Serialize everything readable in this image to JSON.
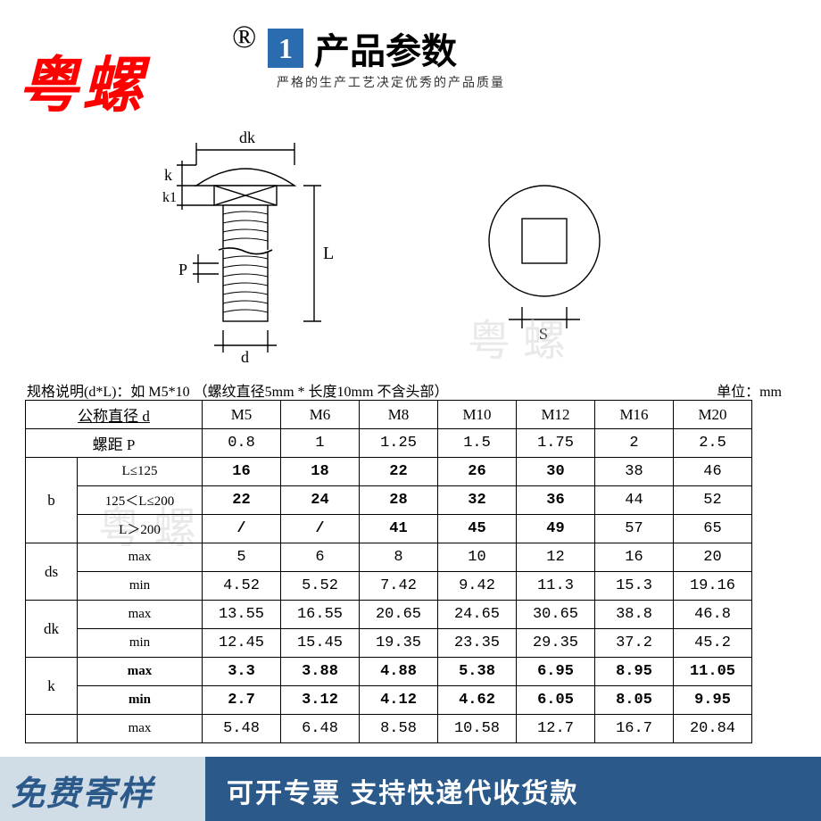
{
  "brand": "粤螺",
  "registered": "®",
  "title_num": "1",
  "title": "产品参数",
  "subtitle": "严格的生产工艺决定优秀的产品质量",
  "watermark": "粤螺",
  "diagram": {
    "labels": {
      "dk": "dk",
      "k": "k",
      "k1": "k1",
      "P": "P",
      "d": "d",
      "L": "L",
      "S": "S"
    },
    "line_color": "#000000",
    "fill_color": "#ffffff"
  },
  "spec_note": "规格说明(d*L)：如 M5*10 （螺纹直径5mm * 长度10mm 不含头部）",
  "unit_note": "单位：mm",
  "table": {
    "border_color": "#000000",
    "font_family": "Courier New",
    "columns": [
      "M5",
      "M6",
      "M8",
      "M10",
      "M12",
      "M16",
      "M20"
    ],
    "header_diameter": "公称直径   d",
    "header_pitch": "螺距    P",
    "pitch": [
      "0.8",
      "1",
      "1.25",
      "1.5",
      "1.75",
      "2",
      "2.5"
    ],
    "groups": [
      {
        "label": "b",
        "rows": [
          {
            "sub": "L≤125",
            "vals": [
              "16",
              "18",
              "22",
              "26",
              "30",
              "38",
              "46"
            ],
            "bold_to": 5
          },
          {
            "sub": "125＜L≤200",
            "vals": [
              "22",
              "24",
              "28",
              "32",
              "36",
              "44",
              "52"
            ],
            "bold_to": 5
          },
          {
            "sub": "L＞200",
            "vals": [
              "/",
              "/",
              "41",
              "45",
              "49",
              "57",
              "65"
            ],
            "bold_to": 5
          }
        ]
      },
      {
        "label": "ds",
        "rows": [
          {
            "sub": "max",
            "vals": [
              "5",
              "6",
              "8",
              "10",
              "12",
              "16",
              "20"
            ]
          },
          {
            "sub": "min",
            "vals": [
              "4.52",
              "5.52",
              "7.42",
              "9.42",
              "11.3",
              "15.3",
              "19.16"
            ]
          }
        ]
      },
      {
        "label": "dk",
        "rows": [
          {
            "sub": "max",
            "vals": [
              "13.55",
              "16.55",
              "20.65",
              "24.65",
              "30.65",
              "38.8",
              "46.8"
            ]
          },
          {
            "sub": "min",
            "vals": [
              "12.45",
              "15.45",
              "19.35",
              "23.35",
              "29.35",
              "37.2",
              "45.2"
            ]
          }
        ]
      },
      {
        "label": "k",
        "rows": [
          {
            "sub": "max",
            "vals": [
              "3.3",
              "3.88",
              "4.88",
              "5.38",
              "6.95",
              "8.95",
              "11.05"
            ],
            "bold": true
          },
          {
            "sub": "min",
            "vals": [
              "2.7",
              "3.12",
              "4.12",
              "4.62",
              "6.05",
              "8.05",
              "9.95"
            ],
            "bold": true
          }
        ]
      },
      {
        "label": "",
        "rows": [
          {
            "sub": "max",
            "vals": [
              "5.48",
              "6.48",
              "8.58",
              "10.58",
              "12.7",
              "16.7",
              "20.84"
            ]
          }
        ]
      }
    ]
  },
  "footer": {
    "left": "免费寄样",
    "right": "可开专票 支持快递代收货款",
    "left_bg": "#d0dde6",
    "left_color": "#2b5a8a",
    "right_bg": "#2b5a8a",
    "right_color": "#ffffff"
  }
}
